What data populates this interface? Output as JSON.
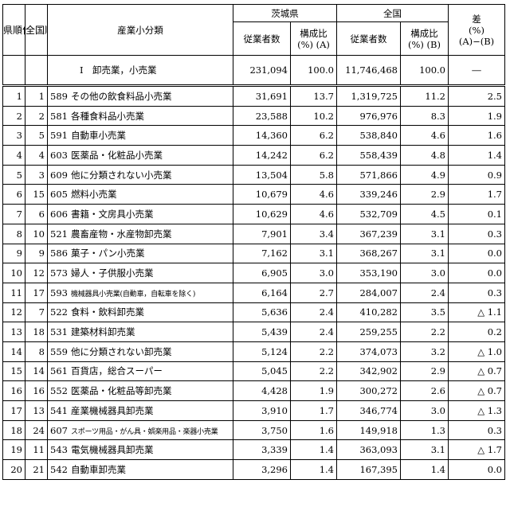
{
  "header": {
    "rank_pref": "県順位",
    "rank_nat": "全国順位",
    "category": "産業小分類",
    "pref": "茨城県",
    "nation": "全国",
    "diff_line1": "差",
    "diff_line2": "(%)",
    "diff_line3": "(A)−(B)",
    "employees": "従業者数",
    "ratio_a_1": "構成比",
    "ratio_a_2": "(%) (A)",
    "ratio_b_1": "構成比",
    "ratio_b_2": "(%) (B)"
  },
  "total": {
    "name": "Ⅰ　卸売業，小売業",
    "pref_emp": "231,094",
    "pref_ratio": "100.0",
    "nat_emp": "11,746,468",
    "nat_ratio": "100.0",
    "diff": "―"
  },
  "rows": [
    {
      "r": "1",
      "n": "1",
      "code": "589",
      "name": "その他の飲食料品小売業",
      "pe": "31,691",
      "pr": "13.7",
      "ne": "1,319,725",
      "nr": "11.2",
      "d": "2.5",
      "small": false
    },
    {
      "r": "2",
      "n": "2",
      "code": "581",
      "name": "各種食料品小売業",
      "pe": "23,588",
      "pr": "10.2",
      "ne": "976,976",
      "nr": "8.3",
      "d": "1.9",
      "small": false
    },
    {
      "r": "3",
      "n": "5",
      "code": "591",
      "name": "自動車小売業",
      "pe": "14,360",
      "pr": "6.2",
      "ne": "538,840",
      "nr": "4.6",
      "d": "1.6",
      "small": false
    },
    {
      "r": "4",
      "n": "4",
      "code": "603",
      "name": "医薬品・化粧品小売業",
      "pe": "14,242",
      "pr": "6.2",
      "ne": "558,439",
      "nr": "4.8",
      "d": "1.4",
      "small": false
    },
    {
      "r": "5",
      "n": "3",
      "code": "609",
      "name": "他に分類されない小売業",
      "pe": "13,504",
      "pr": "5.8",
      "ne": "571,866",
      "nr": "4.9",
      "d": "0.9",
      "small": false
    },
    {
      "r": "6",
      "n": "15",
      "code": "605",
      "name": "燃料小売業",
      "pe": "10,679",
      "pr": "4.6",
      "ne": "339,246",
      "nr": "2.9",
      "d": "1.7",
      "small": false
    },
    {
      "r": "7",
      "n": "6",
      "code": "606",
      "name": "書籍・文房具小売業",
      "pe": "10,629",
      "pr": "4.6",
      "ne": "532,709",
      "nr": "4.5",
      "d": "0.1",
      "small": false
    },
    {
      "r": "8",
      "n": "10",
      "code": "521",
      "name": "農畜産物・水産物卸売業",
      "pe": "7,901",
      "pr": "3.4",
      "ne": "367,239",
      "nr": "3.1",
      "d": "0.3",
      "small": false
    },
    {
      "r": "9",
      "n": "9",
      "code": "586",
      "name": "菓子・パン小売業",
      "pe": "7,162",
      "pr": "3.1",
      "ne": "368,267",
      "nr": "3.1",
      "d": "0.0",
      "small": false
    },
    {
      "r": "10",
      "n": "12",
      "code": "573",
      "name": "婦人・子供服小売業",
      "pe": "6,905",
      "pr": "3.0",
      "ne": "353,190",
      "nr": "3.0",
      "d": "0.0",
      "small": false
    },
    {
      "r": "11",
      "n": "17",
      "code": "593",
      "name": "機械器具小売業(自動車，自転車を除く)",
      "pe": "6,164",
      "pr": "2.7",
      "ne": "284,007",
      "nr": "2.4",
      "d": "0.3",
      "small": true
    },
    {
      "r": "12",
      "n": "7",
      "code": "522",
      "name": "食料・飲料卸売業",
      "pe": "5,636",
      "pr": "2.4",
      "ne": "410,282",
      "nr": "3.5",
      "d": "△ 1.1",
      "small": false
    },
    {
      "r": "13",
      "n": "18",
      "code": "531",
      "name": "建築材料卸売業",
      "pe": "5,439",
      "pr": "2.4",
      "ne": "259,255",
      "nr": "2.2",
      "d": "0.2",
      "small": false
    },
    {
      "r": "14",
      "n": "8",
      "code": "559",
      "name": "他に分類されない卸売業",
      "pe": "5,124",
      "pr": "2.2",
      "ne": "374,073",
      "nr": "3.2",
      "d": "△ 1.0",
      "small": false
    },
    {
      "r": "15",
      "n": "14",
      "code": "561",
      "name": "百貨店，総合スーパー",
      "pe": "5,045",
      "pr": "2.2",
      "ne": "342,902",
      "nr": "2.9",
      "d": "△ 0.7",
      "small": false
    },
    {
      "r": "16",
      "n": "16",
      "code": "552",
      "name": "医薬品・化粧品等卸売業",
      "pe": "4,428",
      "pr": "1.9",
      "ne": "300,272",
      "nr": "2.6",
      "d": "△ 0.7",
      "small": false
    },
    {
      "r": "17",
      "n": "13",
      "code": "541",
      "name": "産業機械器具卸売業",
      "pe": "3,910",
      "pr": "1.7",
      "ne": "346,774",
      "nr": "3.0",
      "d": "△ 1.3",
      "small": false
    },
    {
      "r": "18",
      "n": "24",
      "code": "607",
      "name": "スポーツ用品・がん具・娯楽用品・楽器小売業",
      "pe": "3,750",
      "pr": "1.6",
      "ne": "149,918",
      "nr": "1.3",
      "d": "0.3",
      "small": true
    },
    {
      "r": "19",
      "n": "11",
      "code": "543",
      "name": "電気機械器具卸売業",
      "pe": "3,339",
      "pr": "1.4",
      "ne": "363,093",
      "nr": "3.1",
      "d": "△ 1.7",
      "small": false
    },
    {
      "r": "20",
      "n": "21",
      "code": "542",
      "name": "自動車卸売業",
      "pe": "3,296",
      "pr": "1.4",
      "ne": "167,395",
      "nr": "1.4",
      "d": "0.0",
      "small": false
    }
  ]
}
